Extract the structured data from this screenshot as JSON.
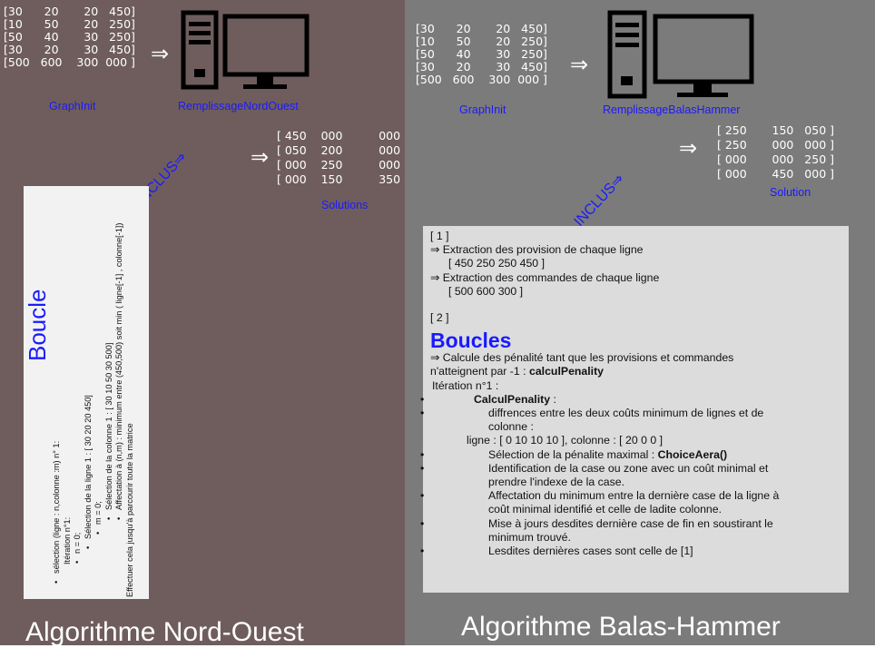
{
  "left": {
    "matrix": "[30      20       20   450]\n[10      50       20   250]\n[50      40       30   250]\n[30      20       30   450]\n[500   600    300  000 ]",
    "graphinit": "GraphInit",
    "remplissage": "RemplissageNordOuest",
    "inclus": "INCLUS⇒",
    "solutions_matrix": "[ 450    000          000 ]\n[ 050    200          000 ]\n[ 000    250          000 ]\n[ 000    150          350 ]",
    "solutions_label": "Solutions",
    "title": "Algorithme Nord-Ouest",
    "box": {
      "heading": "Boucle",
      "lines": [
        "sélection  (ligne : n,colonne :m)  n° 1:",
        "Itération n°1:",
        "n = 0;",
        "Sélection de la ligne 1 : [ 30 20 20 450]",
        "m = 0;",
        "Sélection de la colonne 1 : [ 30 10 50 30 500]",
        "Affectation à (n,m) : minimum entre (450,500)  soit min ( ligne[-1] , colonne[-1])",
        "Effectuer cela jusqu'à parcourir toute la matrice"
      ]
    }
  },
  "right": {
    "matrix": "[30      20       20   450]\n[10      50       20   250]\n[50      40       30   250]\n[30      20       30   450]\n[500   600    300  000 ]",
    "graphinit": "GraphInit",
    "remplissage": "RemplissageBalasHammer",
    "inclus": "INCLUS⇒",
    "solution_matrix": "[ 250       150   050 ]\n[ 250       000   000 ]\n[ 000       000   250 ]\n[ 000       450   000 ]",
    "solution_label": "Solution",
    "title": "Algorithme Balas-Hammer",
    "box": {
      "s1": "[ 1 ]",
      "ext1": "⇒ Extraction des provision de chaque ligne",
      "ext1_val": "[ 450 250 250 450 ]",
      "ext2": "⇒ Extraction des commandes de chaque ligne",
      "ext2_val": "[ 500 600 300 ]",
      "s2": "[ 2 ]",
      "heading": "Boucles",
      "calc_a": " ⇒ Calcule des pénalité tant que les provisions et commandes",
      "calc_b": "n'atteignent par -1 : ",
      "calc_b_bold": "calculPenality",
      "iter": "Itération n°1 :",
      "cp": "CalculPenality",
      "cp_colon": " :",
      "diff_a": "diffrences entre les deux coûts minimum de lignes et de",
      "diff_b": "colonne :",
      "ligne": "ligne : [ 0 10 10 10 ], colonne : [ 20 0 0 ]",
      "sel": "Sélection de la pénalite maximal : ",
      "sel_bold": "ChoiceAera()",
      "ident_a": "Identification de la case ou zone avec un coût minimal et",
      "ident_b": "prendre l'indexe de la case.",
      "aff_a": "Affectation du minimum entre la dernière case de la ligne à",
      "aff_b": "coût minimal identifié et celle de ladite colonne.",
      "maj_a": "Mise à jours desdites dernière case de fin en soustirant le",
      "maj_b": "minimum trouvé.",
      "last": "Lesdites dernières cases sont celle de [1]"
    }
  }
}
